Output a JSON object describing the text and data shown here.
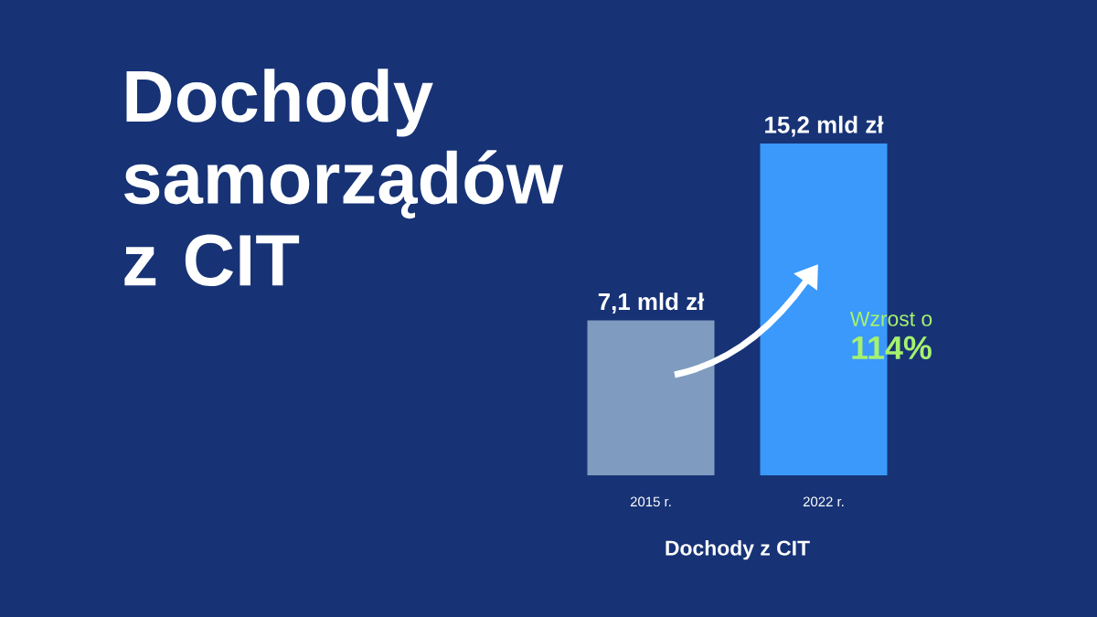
{
  "chart_data": {
    "type": "bar",
    "title": "Dochody samorządów z CIT",
    "categories": [
      "2015 r.",
      "2022 r."
    ],
    "values": [
      7.1,
      15.2
    ],
    "colors": [
      "#7f9bc0",
      "#3a99fb"
    ],
    "value_labels": [
      "7,1 mld zł",
      "15,2 mld zł"
    ],
    "xlabel": "Dochody z CIT",
    "annotations": [
      "Wzrost o",
      "114%"
    ]
  }
}
